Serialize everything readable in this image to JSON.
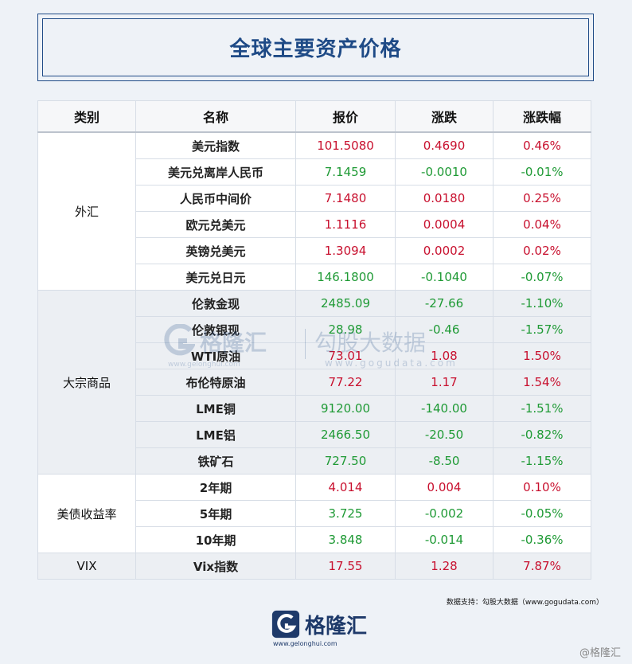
{
  "title": "全球主要资产价格",
  "table": {
    "headers": [
      "类别",
      "名称",
      "报价",
      "涨跌",
      "涨跌幅"
    ],
    "groups": [
      {
        "category": "外汇",
        "rows": [
          {
            "name": "美元指数",
            "price": "101.5080",
            "change": "0.4690",
            "pct": "0.46%",
            "dir": "up"
          },
          {
            "name": "美元兑离岸人民币",
            "price": "7.1459",
            "change": "-0.0010",
            "pct": "-0.01%",
            "dir": "down"
          },
          {
            "name": "人民币中间价",
            "price": "7.1480",
            "change": "0.0180",
            "pct": "0.25%",
            "dir": "up"
          },
          {
            "name": "欧元兑美元",
            "price": "1.1116",
            "change": "0.0004",
            "pct": "0.04%",
            "dir": "up"
          },
          {
            "name": "英镑兑美元",
            "price": "1.3094",
            "change": "0.0002",
            "pct": "0.02%",
            "dir": "up"
          },
          {
            "name": "美元兑日元",
            "price": "146.1800",
            "change": "-0.1040",
            "pct": "-0.07%",
            "dir": "down"
          }
        ]
      },
      {
        "category": "大宗商品",
        "rows": [
          {
            "name": "伦敦金现",
            "price": "2485.09",
            "change": "-27.66",
            "pct": "-1.10%",
            "dir": "down"
          },
          {
            "name": "伦敦银现",
            "price": "28.98",
            "change": "-0.46",
            "pct": "-1.57%",
            "dir": "down"
          },
          {
            "name": "WTI原油",
            "price": "73.01",
            "change": "1.08",
            "pct": "1.50%",
            "dir": "up"
          },
          {
            "name": "布伦特原油",
            "price": "77.22",
            "change": "1.17",
            "pct": "1.54%",
            "dir": "up"
          },
          {
            "name": "LME铜",
            "price": "9120.00",
            "change": "-140.00",
            "pct": "-1.51%",
            "dir": "down"
          },
          {
            "name": "LME铝",
            "price": "2466.50",
            "change": "-20.50",
            "pct": "-0.82%",
            "dir": "down"
          },
          {
            "name": "铁矿石",
            "price": "727.50",
            "change": "-8.50",
            "pct": "-1.15%",
            "dir": "down"
          }
        ]
      },
      {
        "category": "美债收益率",
        "rows": [
          {
            "name": "2年期",
            "price": "4.014",
            "change": "0.004",
            "pct": "0.10%",
            "dir": "up"
          },
          {
            "name": "5年期",
            "price": "3.725",
            "change": "-0.002",
            "pct": "-0.05%",
            "dir": "down"
          },
          {
            "name": "10年期",
            "price": "3.848",
            "change": "-0.014",
            "pct": "-0.36%",
            "dir": "down"
          }
        ]
      },
      {
        "category": "VIX",
        "rows": [
          {
            "name": "Vix指数",
            "price": "17.55",
            "change": "1.28",
            "pct": "7.87%",
            "dir": "up"
          }
        ]
      }
    ]
  },
  "watermark": {
    "brand": "格隆汇",
    "brand_site": "www.gelonghui.com",
    "partner": "勾股大数据",
    "partner_site": "www.gogudata.com"
  },
  "source": "数据支持：勾股大数据（www.gogudata.com）",
  "logo": {
    "name": "格隆汇",
    "site": "www.gelonghui.com"
  },
  "corner_mark": "@格隆汇",
  "colors": {
    "up": "#c8102e",
    "down": "#1f9a35",
    "brand": "#1e4a86"
  }
}
